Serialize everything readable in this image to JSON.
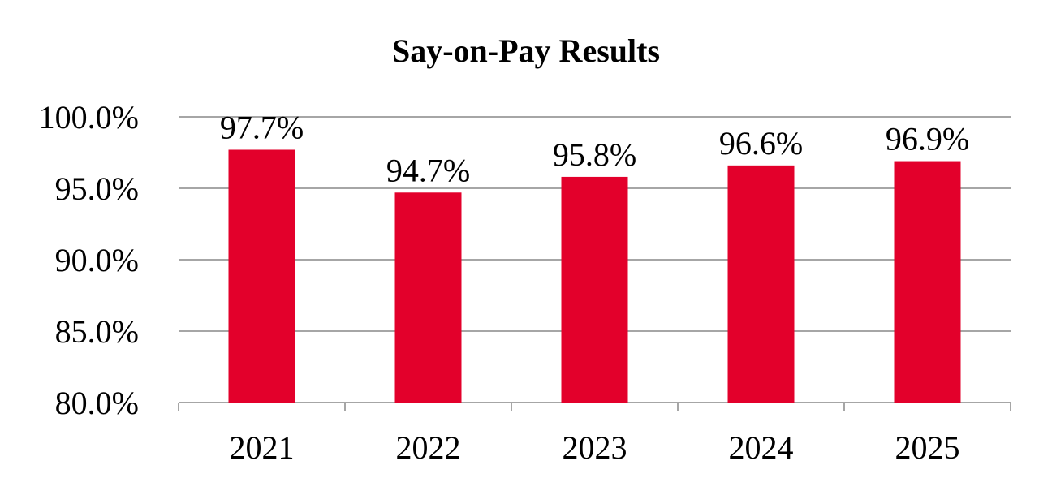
{
  "chart_data": {
    "type": "bar",
    "title": "Say-on-Pay Results",
    "xlabel": "",
    "ylabel": "",
    "categories": [
      "2021",
      "2022",
      "2023",
      "2024",
      "2025"
    ],
    "values": [
      97.7,
      94.7,
      95.8,
      96.6,
      96.9
    ],
    "data_labels": [
      "97.7%",
      "94.7%",
      "95.8%",
      "96.6%",
      "96.9%"
    ],
    "ylim": [
      80.0,
      100.0
    ],
    "yticks": [
      80.0,
      85.0,
      90.0,
      95.0,
      100.0
    ],
    "ytick_labels": [
      "80.0%",
      "85.0%",
      "90.0%",
      "95.0%",
      "100.0%"
    ],
    "grid": true,
    "legend": "none",
    "colors": {
      "bar": "#e3002b",
      "grid": "#a6a6a6",
      "axis": "#a6a6a6",
      "text": "#000000"
    }
  }
}
